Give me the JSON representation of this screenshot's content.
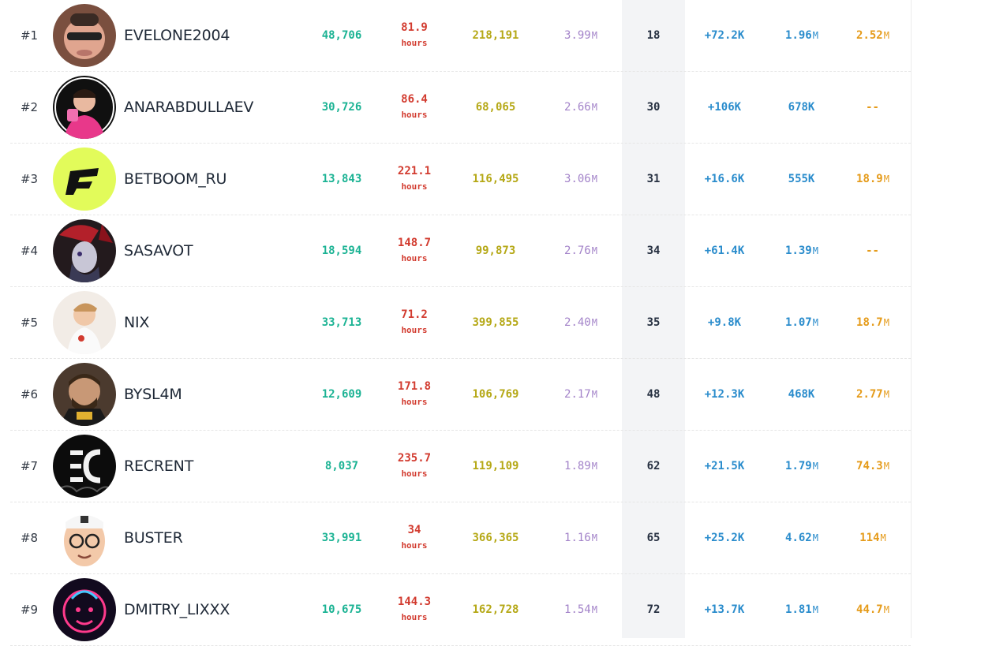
{
  "rows": [
    {
      "rank": "#1",
      "name": "EVELONE2004",
      "followers": "48,706",
      "hours": "81.9",
      "hours_unit": "hours",
      "peak": "218,191",
      "watch": "3.99",
      "watch_suffix": "M",
      "rank_col": "18",
      "gain": "+72.2K",
      "total": "1.96",
      "total_suffix": "M",
      "views": "2.52",
      "views_suffix": "M",
      "avatar_icon": "evelone-avatar-icon",
      "avatar_color": "#8a5a4a"
    },
    {
      "rank": "#2",
      "name": "ANARABDULLAEV",
      "followers": "30,726",
      "hours": "86.4",
      "hours_unit": "hours",
      "peak": "68,065",
      "watch": "2.66",
      "watch_suffix": "M",
      "rank_col": "30",
      "gain": "+106K",
      "total": "678K",
      "total_suffix": "",
      "views": "--",
      "views_suffix": "",
      "avatar_icon": "anarabdullaev-avatar-icon",
      "avatar_color": "#1a1a1a"
    },
    {
      "rank": "#3",
      "name": "BETBOOM_RU",
      "followers": "13,843",
      "hours": "221.1",
      "hours_unit": "hours",
      "peak": "116,495",
      "watch": "3.06",
      "watch_suffix": "M",
      "rank_col": "31",
      "gain": "+16.6K",
      "total": "555K",
      "total_suffix": "",
      "views": "18.9",
      "views_suffix": "M",
      "avatar_icon": "betboom-logo-icon",
      "avatar_color": "#e2fb5a"
    },
    {
      "rank": "#4",
      "name": "SASAVOT",
      "followers": "18,594",
      "hours": "148.7",
      "hours_unit": "hours",
      "peak": "99,873",
      "watch": "2.76",
      "watch_suffix": "M",
      "rank_col": "34",
      "gain": "+61.4K",
      "total": "1.39",
      "total_suffix": "M",
      "views": "--",
      "views_suffix": "",
      "avatar_icon": "sasavot-avatar-icon",
      "avatar_color": "#2a1d22"
    },
    {
      "rank": "#5",
      "name": "NIX",
      "followers": "33,713",
      "hours": "71.2",
      "hours_unit": "hours",
      "peak": "399,855",
      "watch": "2.40",
      "watch_suffix": "M",
      "rank_col": "35",
      "gain": "+9.8K",
      "total": "1.07",
      "total_suffix": "M",
      "views": "18.7",
      "views_suffix": "M",
      "avatar_icon": "nix-avatar-icon",
      "avatar_color": "#efe6df"
    },
    {
      "rank": "#6",
      "name": "BYSL4M",
      "followers": "12,609",
      "hours": "171.8",
      "hours_unit": "hours",
      "peak": "106,769",
      "watch": "2.17",
      "watch_suffix": "M",
      "rank_col": "48",
      "gain": "+12.3K",
      "total": "468K",
      "total_suffix": "",
      "views": "2.77",
      "views_suffix": "M",
      "avatar_icon": "bysl4m-avatar-icon",
      "avatar_color": "#5d4a3a"
    },
    {
      "rank": "#7",
      "name": "RECRENT",
      "followers": "8,037",
      "hours": "235.7",
      "hours_unit": "hours",
      "peak": "119,109",
      "watch": "1.89",
      "watch_suffix": "M",
      "rank_col": "62",
      "gain": "+21.5K",
      "total": "1.79",
      "total_suffix": "M",
      "views": "74.3",
      "views_suffix": "M",
      "avatar_icon": "recrent-logo-icon",
      "avatar_color": "#111111"
    },
    {
      "rank": "#8",
      "name": "BUSTER",
      "followers": "33,991",
      "hours": "34",
      "hours_unit": "hours",
      "peak": "366,365",
      "watch": "1.16",
      "watch_suffix": "M",
      "rank_col": "65",
      "gain": "+25.2K",
      "total": "4.62",
      "total_suffix": "M",
      "views": "114",
      "views_suffix": "M",
      "avatar_icon": "buster-avatar-icon",
      "avatar_color": "#ffffff"
    },
    {
      "rank": "#9",
      "name": "DMITRY_LIXXX",
      "followers": "10,675",
      "hours": "144.3",
      "hours_unit": "hours",
      "peak": "162,728",
      "watch": "1.54",
      "watch_suffix": "M",
      "rank_col": "72",
      "gain": "+13.7K",
      "total": "1.81",
      "total_suffix": "M",
      "views": "44.7",
      "views_suffix": "M",
      "avatar_icon": "dmitry-lixxx-avatar-icon",
      "avatar_color": "#150a22"
    }
  ]
}
